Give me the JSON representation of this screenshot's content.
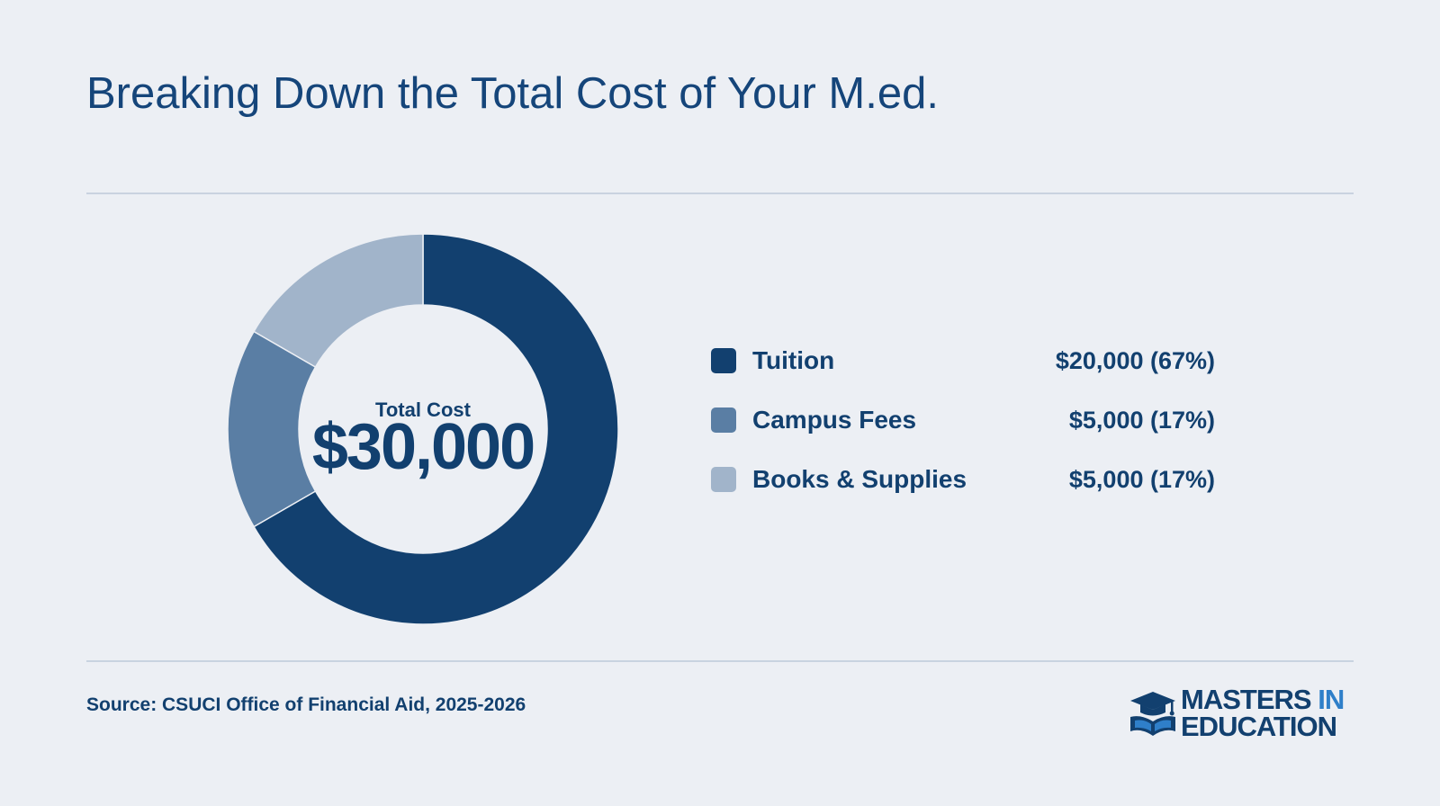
{
  "header": {
    "title": "Breaking Down the Total Cost of Your M.ed."
  },
  "chart_data": {
    "type": "pie",
    "variant": "donut",
    "center_label": "Total Cost",
    "center_value": "$30,000",
    "categories": [
      "Tuition",
      "Campus Fees",
      "Books & Supplies"
    ],
    "values": [
      20000,
      5000,
      5000
    ],
    "value_labels": [
      "$20,000 (67%)",
      "$5,000 (17%)",
      "$5,000 (17%)"
    ],
    "colors": [
      "#12406F",
      "#5A7EA4",
      "#A1B4CA"
    ],
    "start_angle": "top, clockwise",
    "legend_position": "right"
  },
  "footer": {
    "source": "Source: CSUCI Office of Financial Aid, 2025-2026",
    "logo_text_line1_a": "MASTERS",
    "logo_text_line1_b": "IN",
    "logo_text_line2": "EDUCATION",
    "logo_icon": "graduation-cap-book-icon"
  }
}
